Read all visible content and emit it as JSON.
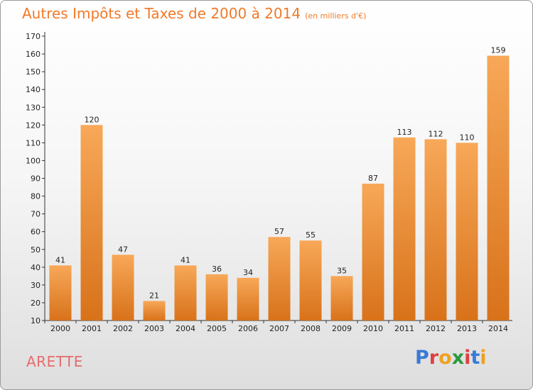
{
  "title": "Autres Impôts et Taxes de 2000 à 2014",
  "subtitle": "(en milliers d'€)",
  "commune": "ARETTE",
  "logo": {
    "text": "Proxiti",
    "colors": [
      "#3a7ad6",
      "#e04040",
      "#f0a020",
      "#2a9a40",
      "#e04040",
      "#3a7ad6",
      "#f0a020"
    ]
  },
  "colors": {
    "bar": "#f0902f",
    "bar_top": "#f7a858",
    "bar_bottom": "#d8721a",
    "title": "#f07a2a",
    "commune": "#e86b6b"
  },
  "chart_data": {
    "type": "bar",
    "categories": [
      "2000",
      "2001",
      "2002",
      "2003",
      "2004",
      "2005",
      "2006",
      "2007",
      "2008",
      "2009",
      "2010",
      "2011",
      "2012",
      "2013",
      "2014"
    ],
    "values": [
      41,
      120,
      47,
      21,
      41,
      36,
      34,
      57,
      55,
      35,
      87,
      113,
      112,
      110,
      159
    ],
    "ylim": [
      10,
      170
    ],
    "yticks": [
      10,
      20,
      30,
      40,
      50,
      60,
      70,
      80,
      90,
      100,
      110,
      120,
      130,
      140,
      150,
      160,
      170
    ],
    "grid": false
  }
}
